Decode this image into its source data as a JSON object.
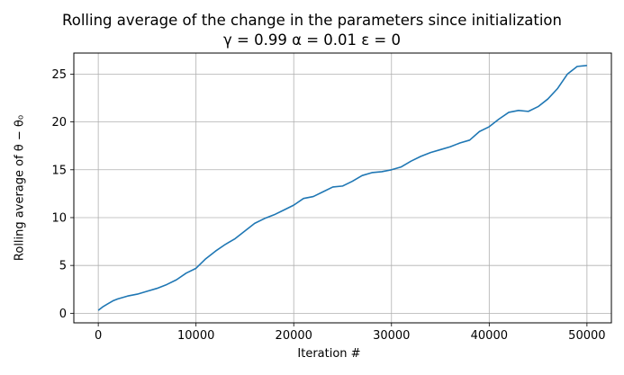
{
  "chart_data": {
    "type": "line",
    "title": "Rolling average of the change in the parameters since initialization",
    "subtitle": "γ = 0.99 α = 0.01 ε = 0",
    "xlabel": "Iteration #",
    "ylabel": "Rolling average of θ − θ₀",
    "xlim": [
      -2500,
      52500
    ],
    "ylim": [
      -1.0,
      27.2
    ],
    "xticks": [
      0,
      10000,
      20000,
      30000,
      40000,
      50000
    ],
    "xtick_labels": [
      "0",
      "10000",
      "20000",
      "30000",
      "40000",
      "50000"
    ],
    "yticks": [
      0,
      5,
      10,
      15,
      20,
      25
    ],
    "ytick_labels": [
      "0",
      "5",
      "10",
      "15",
      "20",
      "25"
    ],
    "grid": true,
    "series": [
      {
        "color": "#1f77b4",
        "x": [
          0,
          500,
          1000,
          1500,
          2000,
          3000,
          4000,
          5000,
          6000,
          7000,
          8000,
          9000,
          10000,
          11000,
          12000,
          13000,
          14000,
          15000,
          16000,
          17000,
          18000,
          19000,
          20000,
          21000,
          22000,
          23000,
          24000,
          25000,
          26000,
          27000,
          28000,
          29000,
          30000,
          31000,
          32000,
          33000,
          34000,
          35000,
          36000,
          37000,
          38000,
          39000,
          40000,
          41000,
          42000,
          43000,
          44000,
          45000,
          46000,
          47000,
          48000,
          49000,
          50000
        ],
        "y": [
          0.3,
          0.7,
          1.0,
          1.3,
          1.5,
          1.8,
          2.0,
          2.3,
          2.6,
          3.0,
          3.5,
          4.2,
          4.7,
          5.7,
          6.5,
          7.2,
          7.8,
          8.6,
          9.4,
          9.9,
          10.3,
          10.8,
          11.3,
          12.0,
          12.2,
          12.7,
          13.2,
          13.3,
          13.8,
          14.4,
          14.7,
          14.8,
          15.0,
          15.3,
          15.9,
          16.4,
          16.8,
          17.1,
          17.4,
          17.8,
          18.1,
          19.0,
          19.5,
          20.3,
          21.0,
          21.2,
          21.1,
          21.6,
          22.4,
          23.5,
          25.0,
          25.8,
          25.9
        ]
      }
    ]
  }
}
